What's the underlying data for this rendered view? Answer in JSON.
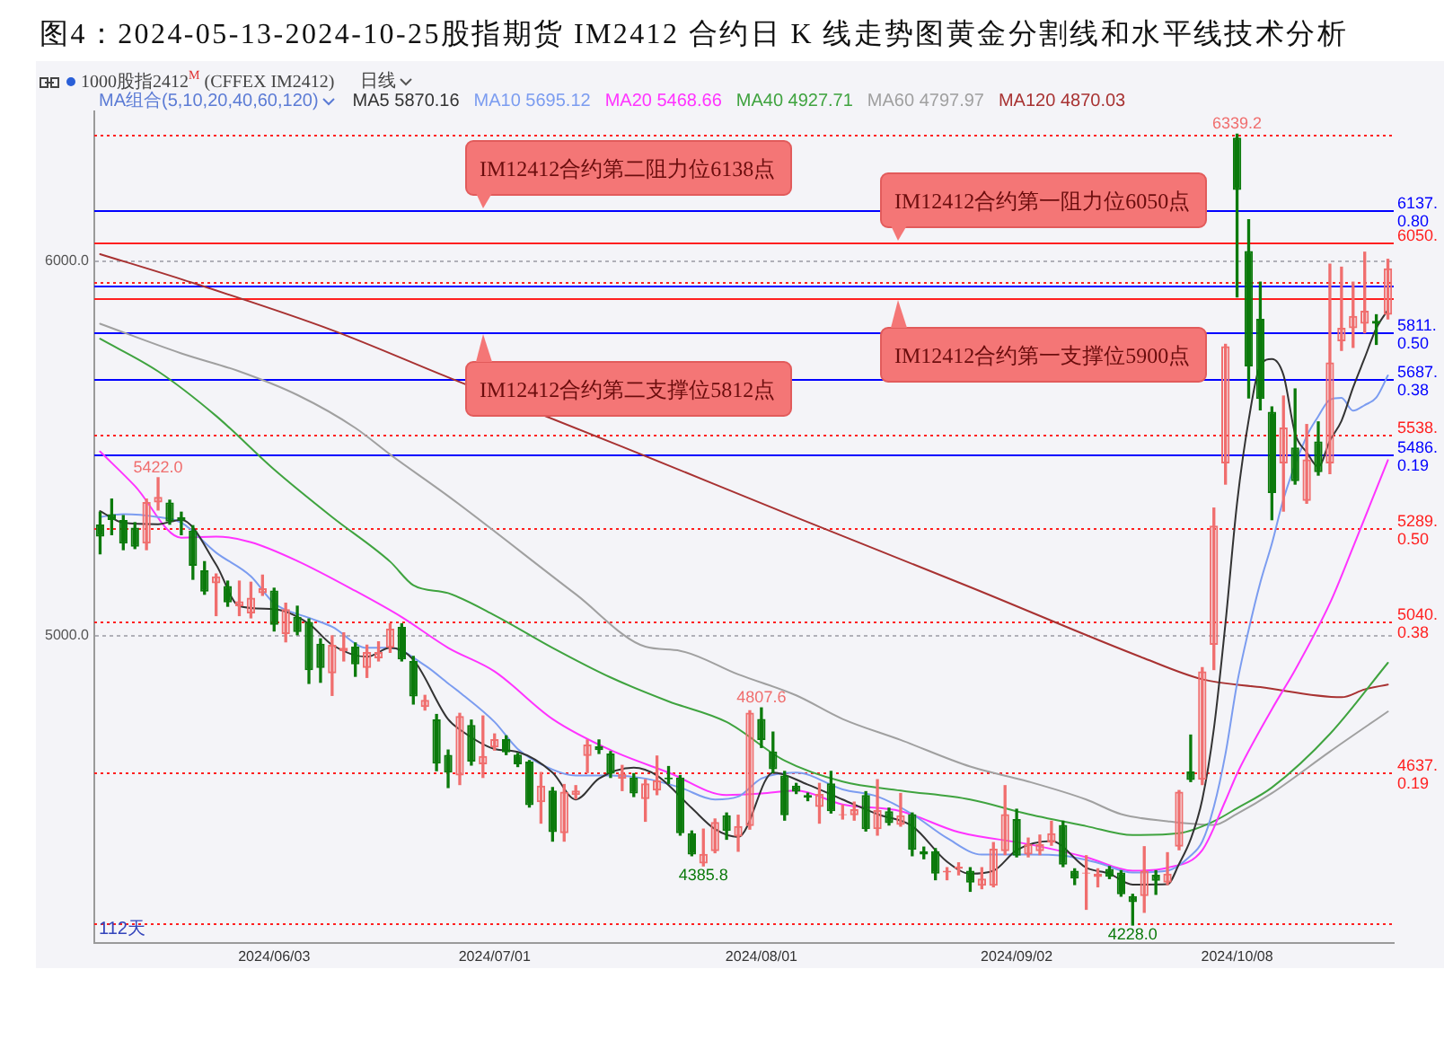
{
  "chart_data": {
    "type": "candlestick",
    "title": "图4：2024-05-13-2024-10-25股指期货 IM2412 合约日 K 线走势图黄金分割线和水平线技术分析",
    "legend_title": "MA组合(5,10,20,40,60,120)",
    "categories": [
      null,
      null,
      null,
      null,
      null,
      null,
      null,
      null,
      null,
      null,
      null,
      null,
      null,
      null,
      null,
      "2024/06/03",
      null,
      null,
      null,
      null,
      null,
      null,
      null,
      null,
      null,
      null,
      null,
      null,
      null,
      null,
      null,
      null,
      null,
      null,
      "2024/07/01",
      null,
      null,
      null,
      null,
      null,
      null,
      null,
      null,
      null,
      null,
      null,
      null,
      null,
      null,
      null,
      null,
      null,
      null,
      null,
      null,
      null,
      null,
      "2024/08/01",
      null,
      null,
      null,
      null,
      null,
      null,
      null,
      null,
      null,
      null,
      null,
      null,
      null,
      null,
      null,
      null,
      null,
      null,
      null,
      null,
      null,
      "2024/09/02",
      null,
      null,
      null,
      null,
      null,
      null,
      null,
      null,
      null,
      null,
      null,
      null,
      null,
      null,
      null,
      null,
      null,
      null,
      "2024/10/08",
      null,
      null,
      null,
      null,
      null,
      null,
      null,
      null,
      null,
      null,
      null,
      null,
      null
    ],
    "series": [
      {
        "ohlc": [
          [
            5297,
            5330,
            5219,
            5265
          ],
          [
            5325,
            5365,
            5270,
            5309
          ],
          [
            5309,
            5321,
            5230,
            5246
          ],
          [
            5289,
            5302,
            5233,
            5238
          ],
          [
            5246,
            5365,
            5230,
            5357
          ],
          [
            5356,
            5422,
            5336,
            5371
          ],
          [
            5356,
            5362,
            5298,
            5305
          ],
          [
            5317,
            5330,
            5270,
            5308
          ],
          [
            5281,
            5294,
            5151,
            5187
          ],
          [
            5175,
            5198,
            5111,
            5118
          ],
          [
            5140,
            5165,
            5054,
            5159
          ],
          [
            5133,
            5146,
            5079,
            5089
          ],
          [
            5079,
            5146,
            5054,
            5092
          ],
          [
            5060,
            5143,
            5048,
            5102
          ],
          [
            5114,
            5162,
            5108,
            5127
          ],
          [
            5121,
            5127,
            5013,
            5029
          ],
          [
            5005,
            5087,
            4984,
            5071
          ],
          [
            5051,
            5079,
            5003,
            5010
          ],
          [
            5037,
            5045,
            4873,
            4908
          ],
          [
            4979,
            4992,
            4876,
            4914
          ],
          [
            4900,
            5000,
            4841,
            4976
          ],
          [
            4959,
            5008,
            4933,
            4968
          ],
          [
            4971,
            4981,
            4892,
            4924
          ],
          [
            4914,
            4975,
            4889,
            4957
          ],
          [
            4940,
            4984,
            4933,
            4957
          ],
          [
            4968,
            5032,
            4956,
            5019
          ],
          [
            5024,
            5032,
            4933,
            4937
          ],
          [
            4933,
            4945,
            4818,
            4838
          ],
          [
            4810,
            4841,
            4802,
            4829
          ],
          [
            4777,
            4790,
            4640,
            4659
          ],
          [
            4682,
            4695,
            4595,
            4635
          ],
          [
            4627,
            4793,
            4603,
            4786
          ],
          [
            4762,
            4775,
            4655,
            4664
          ],
          [
            4657,
            4786,
            4622,
            4679
          ],
          [
            4702,
            4738,
            4695,
            4724
          ],
          [
            4724,
            4733,
            4683,
            4689
          ],
          [
            4683,
            4686,
            4651,
            4657
          ],
          [
            4664,
            4667,
            4543,
            4548
          ],
          [
            4556,
            4635,
            4500,
            4600
          ],
          [
            4587,
            4595,
            4452,
            4476
          ],
          [
            4473,
            4603,
            4452,
            4584
          ],
          [
            4575,
            4600,
            4565,
            4587
          ],
          [
            4679,
            4722,
            4635,
            4710
          ],
          [
            4705,
            4722,
            4686,
            4695
          ],
          [
            4686,
            4691,
            4622,
            4632
          ],
          [
            4619,
            4654,
            4587,
            4632
          ],
          [
            4622,
            4632,
            4571,
            4579
          ],
          [
            4564,
            4616,
            4505,
            4606
          ],
          [
            4587,
            4679,
            4576,
            4614
          ],
          [
            4622,
            4651,
            4606,
            4617
          ],
          [
            4622,
            4627,
            4468,
            4473
          ],
          [
            4473,
            4479,
            4413,
            4416
          ],
          [
            4392,
            4484,
            4385.8,
            4418
          ],
          [
            4425,
            4511,
            4421,
            4503
          ],
          [
            4521,
            4527,
            4457,
            4479
          ],
          [
            4464,
            4521,
            4425,
            4492
          ],
          [
            4492,
            4800,
            4484,
            4795
          ],
          [
            4778,
            4807.6,
            4702,
            4722
          ],
          [
            4691,
            4743,
            4635,
            4644
          ],
          [
            4627,
            4638,
            4508,
            4521
          ],
          [
            4600,
            4606,
            4579,
            4584
          ],
          [
            4575,
            4580,
            4560,
            4568
          ],
          [
            4543,
            4606,
            4500,
            4578
          ],
          [
            4606,
            4638,
            4527,
            4532
          ],
          [
            4521,
            4548,
            4511,
            4524
          ],
          [
            4521,
            4556,
            4508,
            4537
          ],
          [
            4575,
            4584,
            4479,
            4484
          ],
          [
            4484,
            4616,
            4468,
            4535
          ],
          [
            4532,
            4540,
            4495,
            4500
          ],
          [
            4495,
            4579,
            4492,
            4521
          ],
          [
            4524,
            4527,
            4413,
            4429
          ],
          [
            4425,
            4436,
            4405,
            4416
          ],
          [
            4425,
            4432,
            4349,
            4365
          ],
          [
            4368,
            4381,
            4349,
            4373
          ],
          [
            4378,
            4394,
            4362,
            4384
          ],
          [
            4373,
            4381,
            4318,
            4341
          ],
          [
            4333,
            4381,
            4325,
            4352
          ],
          [
            4333,
            4448,
            4330,
            4432
          ],
          [
            4425,
            4600,
            4416,
            4524
          ],
          [
            4511,
            4537,
            4410,
            4413
          ],
          [
            4416,
            4460,
            4410,
            4444
          ],
          [
            4425,
            4468,
            4416,
            4444
          ],
          [
            4448,
            4505,
            4441,
            4473
          ],
          [
            4495,
            4505,
            4384,
            4389
          ],
          [
            4373,
            4378,
            4336,
            4352
          ],
          [
            4365,
            4413,
            4270,
            4368
          ],
          [
            4356,
            4378,
            4330,
            4365
          ],
          [
            4378,
            4384,
            4352,
            4357
          ],
          [
            4368,
            4373,
            4305,
            4310
          ],
          [
            4305,
            4310,
            4228,
            4289
          ],
          [
            4305,
            4437,
            4262,
            4373
          ],
          [
            4362,
            4373,
            4310,
            4346
          ],
          [
            4341,
            4421,
            4336,
            4365
          ],
          [
            4437,
            4587,
            4429,
            4584
          ],
          [
            4638,
            4735,
            4611,
            4615
          ],
          [
            4616,
            4915,
            4603,
            4905
          ],
          [
            4976,
            5341,
            4910,
            5294
          ],
          [
            5460,
            5778,
            5405,
            5773
          ],
          [
            6330,
            6339.2,
            5905,
            6190
          ],
          [
            6027,
            6111,
            5635,
            5719
          ],
          [
            5846,
            5944,
            5603,
            5632
          ],
          [
            5598,
            5611,
            5310,
            5381
          ],
          [
            5460,
            5640,
            5333,
            5556
          ],
          [
            5503,
            5659,
            5405,
            5413
          ],
          [
            5360,
            5564,
            5354,
            5471
          ],
          [
            5519,
            5571,
            5429,
            5437
          ],
          [
            5460,
            5992,
            5433,
            5730
          ],
          [
            5786,
            5984,
            5762,
            5822
          ],
          [
            5821,
            5944,
            5770,
            5854
          ],
          [
            5833,
            6024,
            5809,
            5868
          ],
          [
            5841,
            5857,
            5778,
            5833
          ],
          [
            5857,
            6005,
            5846,
            5981
          ]
        ],
        "colors": [
          "#0b7a0b",
          "#0b7a0b",
          "#0b7a0b",
          "#0b7a0b",
          "#f06e6e",
          "#f06e6e",
          "#0b7a0b",
          "#0b7a0b",
          "#0b7a0b",
          "#0b7a0b",
          "#f06e6e",
          "#0b7a0b",
          "#f06e6e",
          "#f06e6e",
          "#f06e6e",
          "#0b7a0b",
          "#f06e6e",
          "#0b7a0b",
          "#0b7a0b",
          "#0b7a0b",
          "#f06e6e",
          "#f06e6e",
          "#0b7a0b",
          "#f06e6e",
          "#f06e6e",
          "#f06e6e",
          "#0b7a0b",
          "#0b7a0b",
          "#f06e6e",
          "#0b7a0b",
          "#0b7a0b",
          "#f06e6e",
          "#0b7a0b",
          "#f06e6e",
          "#f06e6e",
          "#0b7a0b",
          "#0b7a0b",
          "#0b7a0b",
          "#f06e6e",
          "#0b7a0b",
          "#f06e6e",
          "#f06e6e",
          "#f06e6e",
          "#0b7a0b",
          "#0b7a0b",
          "#f06e6e",
          "#0b7a0b",
          "#f06e6e",
          "#f06e6e",
          "#0b7a0b",
          "#0b7a0b",
          "#0b7a0b",
          "#f06e6e",
          "#f06e6e",
          "#0b7a0b",
          "#f06e6e",
          "#f06e6e",
          "#0b7a0b",
          "#0b7a0b",
          "#0b7a0b",
          "#0b7a0b",
          "#0b7a0b",
          "#f06e6e",
          "#0b7a0b",
          "#f06e6e",
          "#f06e6e",
          "#0b7a0b",
          "#f06e6e",
          "#0b7a0b",
          "#f06e6e",
          "#0b7a0b",
          "#0b7a0b",
          "#0b7a0b",
          "#f06e6e",
          "#f06e6e",
          "#0b7a0b",
          "#f06e6e",
          "#f06e6e",
          "#f06e6e",
          "#0b7a0b",
          "#f06e6e",
          "#f06e6e",
          "#f06e6e",
          "#0b7a0b",
          "#0b7a0b",
          "#f06e6e",
          "#f06e6e",
          "#0b7a0b",
          "#0b7a0b",
          "#0b7a0b",
          "#f06e6e",
          "#0b7a0b",
          "#f06e6e",
          "#f06e6e",
          "#0b7a0b",
          "#f06e6e",
          "#f06e6e",
          "#f06e6e",
          "#0b7a0b",
          "#0b7a0b",
          "#0b7a0b",
          "#0b7a0b",
          "#f06e6e",
          "#0b7a0b",
          "#f06e6e",
          "#0b7a0b",
          "#f06e6e",
          "#f06e6e",
          "#f06e6e",
          "#f06e6e",
          "#0b7a0b",
          "#f06e6e"
        ]
      },
      {
        "type": "line",
        "name": "MA5 5870.16",
        "color": "#333333",
        "values": [
          5333,
          null,
          5302,
          null,
          null,
          5298,
          null,
          5310,
          null,
          null,
          5190,
          null,
          5079,
          null,
          null,
          5071,
          null,
          null,
          5032,
          null,
          4976,
          null,
          null,
          4944,
          null,
          4968,
          null,
          4936,
          null,
          null,
          4777,
          4750,
          null,
          null,
          4698,
          null,
          4690,
          null,
          null,
          4635,
          null,
          4563,
          null,
          4619,
          null,
          null,
          4648,
          null,
          4627,
          null,
          null,
          4540,
          null,
          4484,
          null,
          4463,
          null,
          null,
          4635,
          null,
          null,
          4603,
          null,
          null,
          4563,
          null,
          null,
          4524,
          null,
          null,
          4492,
          null,
          null,
          4397,
          null,
          4365,
          null,
          4373,
          null,
          4428,
          null,
          null,
          4452,
          null,
          null,
          4381,
          null,
          4365,
          null,
          4336,
          null,
          null,
          4337,
          4391,
          4457,
          4563,
          4752,
          5034,
          5355,
          5576,
          5722,
          5739,
          5696,
          5540,
          5490,
          5451,
          5521,
          5574,
          5663,
          5742,
          5821,
          5870
        ]
      },
      {
        "type": "line",
        "name": "MA10 5695.12",
        "color": "#7b9cf0",
        "values": [
          5317,
          null,
          5325,
          null,
          null,
          5317,
          null,
          5302,
          null,
          null,
          5222,
          null,
          null,
          5159,
          null,
          5087,
          null,
          null,
          5048,
          null,
          5024,
          null,
          null,
          4968,
          null,
          4968,
          null,
          null,
          4921,
          null,
          4873,
          4849,
          null,
          null,
          4770,
          null,
          4698,
          null,
          null,
          4643,
          null,
          4627,
          null,
          null,
          4627,
          null,
          null,
          4619,
          null,
          null,
          4595,
          null,
          null,
          4563,
          null,
          4571,
          null,
          4619,
          null,
          null,
          4635,
          null,
          null,
          null,
          4590,
          null,
          null,
          4571,
          null,
          null,
          4524,
          null,
          null,
          4460,
          null,
          null,
          4416,
          null,
          null,
          null,
          4416,
          null,
          null,
          4413,
          null,
          null,
          4394,
          null,
          null,
          4368,
          null,
          null,
          4373,
          null,
          4413,
          4451,
          4544,
          4685,
          4873,
          5016,
          5142,
          5246,
          5365,
          null,
          5533,
          5586,
          5630,
          5635,
          5601,
          5616,
          5636,
          5695
        ]
      },
      {
        "type": "line",
        "name": "MA20 5468.66",
        "color": "#ff33ff",
        "values": [
          5492,
          null,
          null,
          5400,
          null,
          null,
          null,
          5262,
          null,
          null,
          5265,
          null,
          null,
          5250,
          null,
          null,
          null,
          5200,
          null,
          null,
          null,
          null,
          5120,
          null,
          null,
          null,
          5050,
          null,
          null,
          null,
          4968,
          null,
          null,
          null,
          4905,
          null,
          null,
          null,
          null,
          4778,
          null,
          null,
          null,
          null,
          4695,
          null,
          null,
          null,
          null,
          4635,
          null,
          null,
          null,
          null,
          4575,
          null,
          null,
          4579,
          null,
          null,
          4587,
          null,
          null,
          null,
          4550,
          null,
          null,
          null,
          null,
          4532,
          null,
          null,
          null,
          null,
          4476,
          null,
          null,
          null,
          null,
          null,
          4444,
          null,
          null,
          null,
          null,
          4409,
          null,
          null,
          null,
          4373,
          null,
          null,
          4381,
          null,
          null,
          4428,
          null,
          4560,
          4632,
          null,
          null,
          4804,
          null,
          4909,
          null,
          null,
          5087,
          null,
          5237,
          null,
          null,
          5469
        ]
      },
      {
        "type": "line",
        "name": "MA40 4927.71",
        "color": "#3fa33f",
        "values": [
          5793,
          null,
          null,
          null,
          null,
          5706,
          null,
          null,
          null,
          null,
          5587,
          null,
          null,
          null,
          null,
          5444,
          null,
          null,
          null,
          null,
          5317,
          null,
          null,
          null,
          null,
          5198,
          null,
          5135,
          null,
          null,
          5114,
          null,
          null,
          null,
          5055,
          null,
          null,
          null,
          null,
          4968,
          null,
          null,
          null,
          null,
          4889,
          null,
          null,
          null,
          null,
          4825,
          null,
          null,
          null,
          null,
          4770,
          null,
          null,
          null,
          null,
          4667,
          null,
          null,
          null,
          null,
          4611,
          null,
          null,
          null,
          null,
          4587,
          null,
          null,
          null,
          null,
          null,
          4563,
          null,
          null,
          null,
          null,
          4524,
          null,
          null,
          null,
          null,
          4492,
          null,
          null,
          null,
          4468,
          null,
          null,
          null,
          4473,
          null,
          null,
          4505,
          null,
          4540,
          null,
          null,
          4595,
          null,
          null,
          null,
          null,
          4738,
          null,
          null,
          null,
          null,
          4928
        ]
      },
      {
        "type": "line",
        "name": "MA60 4797.97",
        "color": "#a0a0a0",
        "values": [
          5833,
          null,
          null,
          null,
          null,
          null,
          null,
          5754,
          null,
          null,
          null,
          null,
          5706,
          null,
          null,
          null,
          null,
          5643,
          null,
          null,
          null,
          null,
          5555,
          null,
          null,
          5484,
          null,
          null,
          null,
          null,
          5373,
          null,
          null,
          null,
          null,
          null,
          null,
          null,
          null,
          null,
          null,
          5111,
          null,
          null,
          null,
          null,
          null,
          4971,
          null,
          null,
          4960,
          null,
          null,
          null,
          null,
          4897,
          null,
          null,
          null,
          null,
          4841,
          null,
          null,
          null,
          4778,
          null,
          null,
          null,
          null,
          4722,
          null,
          null,
          null,
          null,
          null,
          4651,
          null,
          null,
          null,
          null,
          4611,
          null,
          null,
          null,
          null,
          4563,
          null,
          null,
          4524,
          null,
          null,
          null,
          4505,
          null,
          null,
          null,
          4495,
          null,
          4525,
          null,
          null,
          4580,
          null,
          null,
          null,
          null,
          4691,
          null,
          null,
          null,
          null,
          4798
        ]
      },
      {
        "type": "line",
        "name": "MA120 4870.03",
        "color": "#a83232",
        "values": [
          6019,
          null,
          null,
          null,
          null,
          null,
          null,
          5952,
          null,
          null,
          null,
          null,
          null,
          null,
          null,
          null,
          null,
          null,
          null,
          null,
          5816,
          null,
          null,
          null,
          null,
          null,
          null,
          null,
          null,
          null,
          5690,
          null,
          null,
          null,
          null,
          null,
          null,
          null,
          null,
          null,
          null,
          null,
          null,
          null,
          null,
          5505,
          null,
          null,
          null,
          null,
          null,
          null,
          null,
          null,
          null,
          null,
          null,
          null,
          null,
          null,
          5316,
          null,
          null,
          null,
          null,
          null,
          null,
          null,
          null,
          null,
          null,
          null,
          null,
          null,
          null,
          5130,
          null,
          null,
          null,
          null,
          null,
          null,
          null,
          null,
          null,
          null,
          null,
          null,
          null,
          null,
          4940,
          null,
          null,
          null,
          null,
          4884,
          null,
          null,
          null,
          null,
          4863,
          null,
          null,
          null,
          null,
          null,
          null,
          4836,
          null,
          4857,
          null,
          4870
        ]
      }
    ],
    "ylim": [
      4180,
      6400
    ],
    "yticks": [
      {
        "value": 5000,
        "label": "5000.0"
      },
      {
        "value": 6000,
        "label": "6000.0"
      }
    ],
    "grid": "y",
    "legend": "top",
    "ref_lines": [
      {
        "axis": "y",
        "value": 6339.2,
        "color": "#ff2020",
        "line_style": "dotted"
      },
      {
        "axis": "y",
        "value": 6137,
        "label": "6137.\n0.80",
        "color": "#0000ff"
      },
      {
        "axis": "y",
        "value": 6050,
        "label": "6050.",
        "color": "#ff2020"
      },
      {
        "axis": "y",
        "value": 5945,
        "color": "#ff2020",
        "line_style": "dotted"
      },
      {
        "axis": "y",
        "value": 5937,
        "color": "#0000ff"
      },
      {
        "axis": "y",
        "value": 5900,
        "color": "#ff2020"
      },
      {
        "axis": "y",
        "value": 5811,
        "label": "5811.\n0.50",
        "color": "#0000ff"
      },
      {
        "axis": "y",
        "value": 5687,
        "label": "5687.\n0.38",
        "color": "#0000ff"
      },
      {
        "axis": "y",
        "value": 5538,
        "label": "5538.",
        "color": "#ff2020",
        "line_style": "dotted"
      },
      {
        "axis": "y",
        "value": 5486,
        "label": "5486.\n0.19",
        "color": "#0000ff"
      },
      {
        "axis": "y",
        "value": 5289,
        "label": "5289.\n0.50",
        "color": "#ff2020",
        "line_style": "dotted"
      },
      {
        "axis": "y",
        "value": 5040,
        "label": "5040.\n0.38",
        "color": "#ff2020",
        "line_style": "dotted"
      },
      {
        "axis": "y",
        "value": 4637,
        "label": "4637.\n0.19",
        "color": "#ff2020",
        "line_style": "dotted"
      },
      {
        "axis": "y",
        "value": 4233,
        "color": "#ff2020",
        "line_style": "dotted"
      }
    ],
    "annotations": [
      "1000股指2412$^{M}$ (CFFEX IM2412)",
      "日线",
      {
        "text": "IM12412合约第二阻力位6138点",
        "y": 6138
      },
      {
        "text": "IM12412合约第一阻力位6050点",
        "y": 6050
      },
      {
        "text": "IM12412合约第一支撑位5900点",
        "y": 5900
      },
      {
        "text": "IM12412合约第二支撑位5812点",
        "y": 5812
      },
      {
        "text": "6339.2",
        "y": 6339.2
      },
      {
        "text": "5422.0",
        "y": 5422
      },
      {
        "text": "4807.6",
        "y": 4807.6
      },
      {
        "text": "4385.8",
        "y": 4385.8
      },
      {
        "text": "4228.0",
        "y": 4228
      },
      "112天"
    ]
  }
}
